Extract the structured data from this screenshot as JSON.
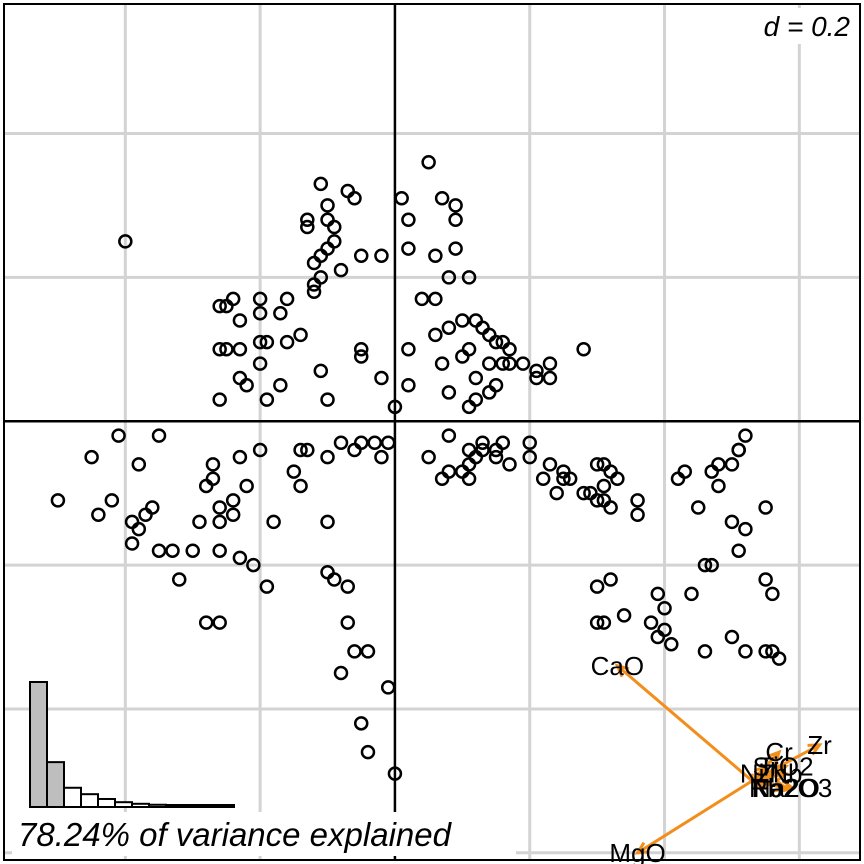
{
  "chart_data": {
    "type": "scatter",
    "title": "",
    "scale_label": "d = 0.2",
    "scale_d": 0.2,
    "variance_text": "78.24% of variance explained",
    "grid": true,
    "xlim": [
      -0.58,
      0.69
    ],
    "ylim": [
      -0.61,
      0.58
    ],
    "colors": {
      "points": "#000000",
      "arrows": "#f28e1c",
      "grid": "#d3d3d3",
      "eigen_bars": "#bebebe"
    },
    "points": [
      [
        -0.4,
        0.25
      ],
      [
        -0.11,
        0.33
      ],
      [
        -0.07,
        0.32
      ],
      [
        -0.13,
        0.28
      ],
      [
        -0.13,
        0.27
      ],
      [
        -0.06,
        0.31
      ],
      [
        -0.1,
        0.3
      ],
      [
        -0.1,
        0.28
      ],
      [
        -0.12,
        0.22
      ],
      [
        -0.11,
        0.23
      ],
      [
        -0.1,
        0.24
      ],
      [
        -0.09,
        0.27
      ],
      [
        -0.09,
        0.25
      ],
      [
        -0.02,
        0.23
      ],
      [
        0.01,
        0.31
      ],
      [
        0.02,
        0.28
      ],
      [
        0.02,
        0.24
      ],
      [
        0.05,
        0.36
      ],
      [
        0.07,
        0.31
      ],
      [
        0.09,
        0.3
      ],
      [
        0.09,
        0.28
      ],
      [
        0.09,
        0.24
      ],
      [
        0.06,
        0.23
      ],
      [
        0.08,
        0.2
      ],
      [
        0.11,
        0.2
      ],
      [
        -0.05,
        0.23
      ],
      [
        -0.08,
        0.21
      ],
      [
        -0.11,
        0.2
      ],
      [
        -0.12,
        0.19
      ],
      [
        -0.12,
        0.18
      ],
      [
        -0.16,
        0.17
      ],
      [
        -0.2,
        0.17
      ],
      [
        -0.23,
        0.14
      ],
      [
        -0.24,
        0.17
      ],
      [
        -0.26,
        0.16
      ],
      [
        -0.25,
        0.16
      ],
      [
        -0.2,
        0.15
      ],
      [
        -0.17,
        0.15
      ],
      [
        -0.14,
        0.12
      ],
      [
        -0.16,
        0.11
      ],
      [
        -0.19,
        0.11
      ],
      [
        -0.23,
        0.1
      ],
      [
        -0.25,
        0.1
      ],
      [
        -0.26,
        0.1
      ],
      [
        -0.2,
        0.11
      ],
      [
        -0.2,
        0.08
      ],
      [
        -0.23,
        0.06
      ],
      [
        -0.22,
        0.05
      ],
      [
        -0.17,
        0.05
      ],
      [
        -0.19,
        0.03
      ],
      [
        -0.26,
        0.03
      ],
      [
        -0.11,
        0.07
      ],
      [
        -0.1,
        0.03
      ],
      [
        -0.05,
        0.1
      ],
      [
        -0.05,
        0.09
      ],
      [
        -0.02,
        0.06
      ],
      [
        0.02,
        0.05
      ],
      [
        0.0,
        0.02
      ],
      [
        0.02,
        0.1
      ],
      [
        0.04,
        0.17
      ],
      [
        0.06,
        0.17
      ],
      [
        0.06,
        0.12
      ],
      [
        0.08,
        0.13
      ],
      [
        0.07,
        0.08
      ],
      [
        0.1,
        0.14
      ],
      [
        0.12,
        0.14
      ],
      [
        0.14,
        0.12
      ],
      [
        0.15,
        0.11
      ],
      [
        0.16,
        0.11
      ],
      [
        0.16,
        0.08
      ],
      [
        0.17,
        0.08
      ],
      [
        0.12,
        0.06
      ],
      [
        0.08,
        0.04
      ],
      [
        0.12,
        0.03
      ],
      [
        0.14,
        0.04
      ],
      [
        0.14,
        0.08
      ],
      [
        0.17,
        0.1
      ],
      [
        0.19,
        0.08
      ],
      [
        0.21,
        0.07
      ],
      [
        0.21,
        0.06
      ],
      [
        0.23,
        0.08
      ],
      [
        0.23,
        0.06
      ],
      [
        0.28,
        0.1
      ],
      [
        0.13,
        0.13
      ],
      [
        0.11,
        0.1
      ],
      [
        0.1,
        0.09
      ],
      [
        0.15,
        0.05
      ],
      [
        0.11,
        0.02
      ],
      [
        0.13,
        -0.04
      ],
      [
        0.12,
        -0.05
      ],
      [
        0.15,
        -0.04
      ],
      [
        0.15,
        -0.05
      ],
      [
        0.1,
        -0.07
      ],
      [
        0.11,
        -0.06
      ],
      [
        0.11,
        -0.08
      ],
      [
        0.2,
        -0.05
      ],
      [
        0.17,
        -0.06
      ],
      [
        0.22,
        -0.08
      ],
      [
        0.25,
        -0.08
      ],
      [
        0.26,
        -0.08
      ],
      [
        0.25,
        -0.07
      ],
      [
        0.3,
        -0.06
      ],
      [
        0.31,
        -0.06
      ],
      [
        0.32,
        -0.07
      ],
      [
        0.28,
        -0.1
      ],
      [
        0.31,
        -0.09
      ],
      [
        0.3,
        -0.11
      ],
      [
        0.31,
        -0.11
      ],
      [
        0.32,
        -0.12
      ],
      [
        0.33,
        -0.08
      ],
      [
        0.29,
        -0.1
      ],
      [
        0.24,
        -0.1
      ],
      [
        0.36,
        -0.11
      ],
      [
        0.42,
        -0.08
      ],
      [
        0.43,
        -0.07
      ],
      [
        0.47,
        -0.07
      ],
      [
        0.48,
        -0.09
      ],
      [
        0.48,
        -0.06
      ],
      [
        0.5,
        -0.06
      ],
      [
        0.51,
        -0.04
      ],
      [
        0.36,
        -0.13
      ],
      [
        0.45,
        -0.12
      ],
      [
        0.5,
        -0.14
      ],
      [
        0.52,
        -0.15
      ],
      [
        0.55,
        -0.12
      ],
      [
        0.51,
        -0.04
      ],
      [
        0.52,
        -0.02
      ],
      [
        0.51,
        -0.18
      ],
      [
        0.46,
        -0.2
      ],
      [
        0.47,
        -0.2
      ],
      [
        0.39,
        -0.24
      ],
      [
        0.4,
        -0.26
      ],
      [
        0.44,
        -0.24
      ],
      [
        0.55,
        -0.22
      ],
      [
        0.56,
        -0.24
      ],
      [
        0.5,
        -0.3
      ],
      [
        0.41,
        -0.31
      ],
      [
        0.56,
        -0.32
      ],
      [
        0.55,
        -0.32
      ],
      [
        0.57,
        -0.33
      ],
      [
        0.46,
        -0.32
      ],
      [
        0.52,
        -0.32
      ],
      [
        0.23,
        -0.06
      ],
      [
        0.16,
        -0.03
      ],
      [
        0.05,
        -0.05
      ],
      [
        0.08,
        -0.02
      ],
      [
        0.2,
        -0.03
      ],
      [
        0.11,
        -0.04
      ],
      [
        0.13,
        -0.03
      ],
      [
        0.08,
        -0.07
      ],
      [
        -0.02,
        -0.05
      ],
      [
        -0.03,
        -0.03
      ],
      [
        -0.08,
        -0.03
      ],
      [
        -0.13,
        -0.04
      ],
      [
        -0.14,
        -0.04
      ],
      [
        -0.2,
        -0.04
      ],
      [
        -0.23,
        -0.05
      ],
      [
        -0.27,
        -0.06
      ],
      [
        -0.27,
        -0.08
      ],
      [
        -0.28,
        -0.09
      ],
      [
        -0.22,
        -0.09
      ],
      [
        -0.24,
        -0.11
      ],
      [
        -0.26,
        -0.12
      ],
      [
        -0.24,
        -0.13
      ],
      [
        -0.26,
        -0.14
      ],
      [
        -0.29,
        -0.14
      ],
      [
        -0.36,
        -0.12
      ],
      [
        -0.37,
        -0.13
      ],
      [
        -0.39,
        -0.14
      ],
      [
        -0.38,
        -0.15
      ],
      [
        -0.39,
        -0.17
      ],
      [
        -0.44,
        -0.13
      ],
      [
        -0.42,
        -0.11
      ],
      [
        -0.5,
        -0.11
      ],
      [
        -0.45,
        -0.05
      ],
      [
        -0.38,
        -0.06
      ],
      [
        -0.41,
        -0.02
      ],
      [
        -0.35,
        -0.02
      ],
      [
        -0.35,
        -0.18
      ],
      [
        -0.33,
        -0.18
      ],
      [
        -0.3,
        -0.18
      ],
      [
        -0.26,
        -0.18
      ],
      [
        -0.23,
        -0.19
      ],
      [
        -0.15,
        -0.07
      ],
      [
        -0.14,
        -0.09
      ],
      [
        -0.1,
        -0.05
      ],
      [
        -0.05,
        -0.03
      ],
      [
        -0.06,
        -0.04
      ],
      [
        -0.01,
        -0.03
      ],
      [
        0.07,
        -0.08
      ],
      [
        -0.18,
        -0.14
      ],
      [
        -0.1,
        -0.14
      ],
      [
        -0.1,
        -0.21
      ],
      [
        -0.09,
        -0.22
      ],
      [
        -0.07,
        -0.23
      ],
      [
        -0.07,
        -0.28
      ],
      [
        -0.08,
        -0.35
      ],
      [
        -0.04,
        -0.32
      ],
      [
        -0.06,
        -0.32
      ],
      [
        -0.32,
        -0.22
      ],
      [
        -0.26,
        -0.28
      ],
      [
        -0.28,
        -0.28
      ],
      [
        -0.19,
        -0.23
      ],
      [
        -0.21,
        -0.2
      ],
      [
        -0.01,
        -0.37
      ],
      [
        -0.05,
        -0.42
      ],
      [
        -0.04,
        -0.46
      ],
      [
        0.0,
        -0.49
      ],
      [
        0.3,
        -0.23
      ],
      [
        0.32,
        -0.22
      ],
      [
        0.34,
        -0.27
      ],
      [
        0.38,
        -0.28
      ],
      [
        0.39,
        -0.3
      ],
      [
        0.4,
        -0.29
      ],
      [
        0.3,
        -0.28
      ],
      [
        0.31,
        -0.28
      ]
    ],
    "arrows": [
      {
        "name": "CaO",
        "x": 0.33,
        "y": -0.34
      },
      {
        "name": "MgO",
        "x": 0.36,
        "y": -0.6
      },
      {
        "name": "Zr",
        "x": 0.63,
        "y": -0.45
      },
      {
        "name": "Cr",
        "x": 0.57,
        "y": -0.46
      },
      {
        "name": "Sr",
        "x": 0.55,
        "y": -0.48
      },
      {
        "name": "TiO2",
        "x": 0.58,
        "y": -0.48
      },
      {
        "name": "Ni",
        "x": 0.53,
        "y": -0.49
      },
      {
        "name": "Zn",
        "x": 0.56,
        "y": -0.49
      },
      {
        "name": "Nb",
        "x": 0.58,
        "y": -0.49
      },
      {
        "name": "Fe2O3",
        "x": 0.59,
        "y": -0.51
      },
      {
        "name": "Rb",
        "x": 0.55,
        "y": -0.51
      },
      {
        "name": "Na2O",
        "x": 0.58,
        "y": -0.51
      }
    ],
    "arrow_origin": [
      0.53,
      -0.5
    ],
    "eigenvalues": [
      0.39,
      0.14,
      0.06,
      0.04,
      0.025,
      0.015,
      0.01,
      0.007,
      0.005,
      0.004,
      0.003,
      0.002
    ]
  }
}
